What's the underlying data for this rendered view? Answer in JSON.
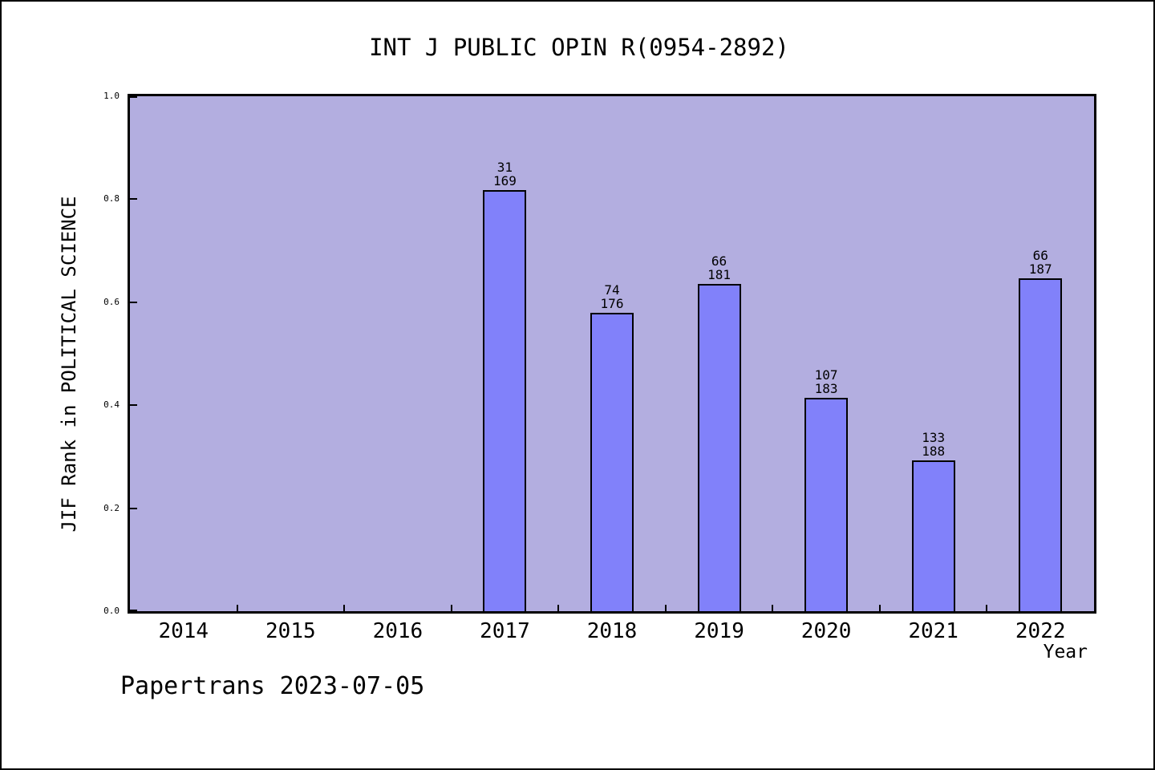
{
  "page": {
    "footer": "Papertrans 2023-07-05"
  },
  "colors": {
    "page_background": "#ffffff",
    "plot_background": "#b3aee0",
    "bar_fill": "#8181fa",
    "bar_border": "#000000",
    "frame": "#000000",
    "text": "#000000"
  },
  "chart_data": {
    "type": "bar",
    "title": "INT J PUBLIC OPIN R(0954-2892)",
    "xlabel": "Year",
    "ylabel": "JIF Rank in POLITICAL SCIENCE",
    "ylim": [
      0.0,
      1.0
    ],
    "yticks": [
      0.0,
      0.2,
      0.4,
      0.6,
      0.8,
      1.0
    ],
    "ytick_labels": [
      "0.0",
      "0.2",
      "0.4",
      "0.6",
      "0.8",
      "1.0"
    ],
    "categories": [
      "2014",
      "2015",
      "2016",
      "2017",
      "2018",
      "2019",
      "2020",
      "2021",
      "2022"
    ],
    "grid": false,
    "legend": null,
    "bars": [
      {
        "year": "2017",
        "rank": 31,
        "total": 169,
        "value": 0.817
      },
      {
        "year": "2018",
        "rank": 74,
        "total": 176,
        "value": 0.58
      },
      {
        "year": "2019",
        "rank": 66,
        "total": 181,
        "value": 0.635
      },
      {
        "year": "2020",
        "rank": 107,
        "total": 183,
        "value": 0.415
      },
      {
        "year": "2021",
        "rank": 133,
        "total": 188,
        "value": 0.293
      },
      {
        "year": "2022",
        "rank": 66,
        "total": 187,
        "value": 0.647
      }
    ]
  }
}
